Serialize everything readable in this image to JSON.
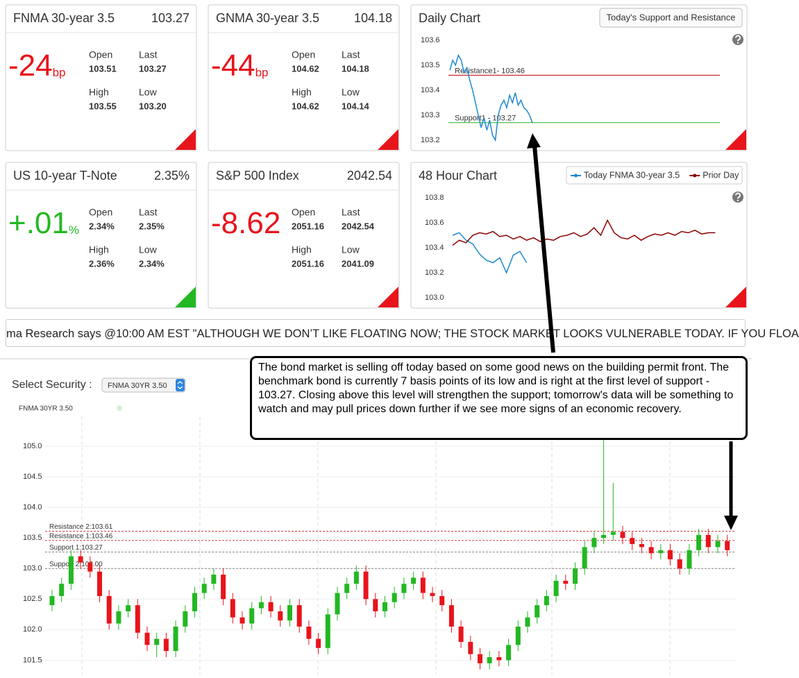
{
  "cards": [
    {
      "title": "FNMA 30-year 3.5",
      "price": "103.27",
      "change": "-24",
      "unit": "bp",
      "color": "#e8141b",
      "fields": [
        {
          "label": "Open",
          "value": "103.51"
        },
        {
          "label": "Last",
          "value": "103.27"
        },
        {
          "label": "High",
          "value": "103.55"
        },
        {
          "label": "Low",
          "value": "103.20"
        }
      ]
    },
    {
      "title": "GNMA 30-year 3.5",
      "price": "104.18",
      "change": "-44",
      "unit": "bp",
      "color": "#e8141b",
      "fields": [
        {
          "label": "Open",
          "value": "104.62"
        },
        {
          "label": "Last",
          "value": "104.18"
        },
        {
          "label": "High",
          "value": "104.62"
        },
        {
          "label": "Low",
          "value": "104.14"
        }
      ]
    },
    {
      "title": "US 10-year T-Note",
      "price": "2.35%",
      "change": "+.01",
      "unit": "%",
      "color": "#22b822",
      "fields": [
        {
          "label": "Open",
          "value": "2.34%"
        },
        {
          "label": "Last",
          "value": "2.35%"
        },
        {
          "label": "High",
          "value": "2.36%"
        },
        {
          "label": "Low",
          "value": "2.34%"
        }
      ]
    },
    {
      "title": "S&P 500 Index",
      "price": "2042.54",
      "change": "-8.62",
      "color": "#e8141b",
      "fields": [
        {
          "label": "Open",
          "value": "2051.16"
        },
        {
          "label": "Last",
          "value": "2042.54"
        },
        {
          "label": "High",
          "value": "2051.16"
        },
        {
          "label": "Low",
          "value": "2041.09"
        }
      ]
    }
  ],
  "ticker": "ma Research says @10:00 AM EST \"ALTHOUGH WE DON’T LIKE FLOATING NOW; THE STOCK MARKET LOOKS VULNERABLE TODAY. IF YOU FLOA",
  "annotation": "The bond market is selling off today based on some good news on the building permit front.  The benchmark bond is currently 7 basis points of its low and is right at the first level of support - 103.27.  Closing above this level will strengthen the support; tomorrow's data will be something to watch and may pull prices down further if we see more signs of an economic recovery.",
  "select_security": {
    "label": "Select Security :",
    "selected": "FNMA 30YR 3.50"
  },
  "chart_data": [
    {
      "type": "line",
      "title": "Daily Chart",
      "button": "Today's Support and Resistance",
      "color": "#1e88d0",
      "values": [
        103.48,
        103.52,
        103.5,
        103.54,
        103.52,
        103.47,
        103.49,
        103.44,
        103.4,
        103.35,
        103.3,
        103.25,
        103.29,
        103.24,
        103.28,
        103.22,
        103.2,
        103.3,
        103.34,
        103.36,
        103.33,
        103.38,
        103.35,
        103.39,
        103.34,
        103.36,
        103.33,
        103.32,
        103.3,
        103.27
      ],
      "ylim": [
        103.15,
        103.65
      ],
      "yticks": [
        103.2,
        103.3,
        103.4,
        103.5,
        103.6
      ],
      "levels": [
        {
          "label": "Resistance1- 103.46",
          "value": 103.46,
          "color": "#c00000"
        },
        {
          "label": "Support1 - 103.27",
          "value": 103.27,
          "color": "#22b822"
        }
      ]
    },
    {
      "type": "line",
      "title": "48 Hour Chart",
      "legend": "top-right",
      "series": [
        {
          "name": "Today FNMA 30-year 3.5",
          "color": "#1e88d0",
          "values": [
            103.5,
            103.52,
            103.46,
            103.43,
            103.35,
            103.3,
            103.28,
            103.32,
            103.2,
            103.34,
            103.37,
            103.28
          ]
        },
        {
          "name": "Prior Day",
          "color": "#8b0000",
          "values": [
            103.42,
            103.46,
            103.44,
            103.5,
            103.52,
            103.51,
            103.53,
            103.49,
            103.5,
            103.47,
            103.49,
            103.46,
            103.48,
            103.45,
            103.47,
            103.46,
            103.49,
            103.5,
            103.52,
            103.49,
            103.51,
            103.56,
            103.5,
            103.62,
            103.52,
            103.48,
            103.47,
            103.5,
            103.46,
            103.49,
            103.51,
            103.5,
            103.52,
            103.5,
            103.53,
            103.52,
            103.54,
            103.51,
            103.52,
            103.52
          ]
        }
      ],
      "ylim": [
        102.95,
        103.9
      ],
      "yticks": [
        {
          "value": 103,
          "label": "103.0"
        },
        103.2,
        103.4,
        103.6,
        103.8
      ]
    },
    {
      "type": "candlestick",
      "title": "FNMA 30YR 3.50",
      "up_color": "#22b822",
      "down_color": "#e8141b",
      "grid": true,
      "open": [
        102.4,
        102.55,
        102.75,
        103.2,
        103.1,
        102.95,
        102.55,
        102.1,
        102.3,
        102.4,
        101.95,
        101.75,
        101.85,
        101.65,
        102.05,
        102.3,
        102.6,
        102.75,
        102.9,
        102.5,
        102.2,
        102.1,
        102.35,
        102.45,
        102.3,
        102.15,
        102.4,
        102.05,
        101.85,
        101.7,
        102.25,
        102.6,
        102.75,
        102.95,
        102.5,
        102.3,
        102.45,
        102.6,
        102.75,
        102.85,
        102.6,
        102.55,
        102.4,
        102.05,
        101.8,
        101.6,
        101.45,
        101.55,
        101.5,
        101.75,
        102.05,
        102.2,
        102.4,
        102.55,
        102.8,
        102.75,
        103.0,
        103.35,
        103.5,
        103.55,
        103.6,
        103.5,
        103.4,
        103.35,
        103.25,
        103.3,
        103.15,
        103.0,
        103.3,
        103.55,
        103.35,
        103.45
      ],
      "high": [
        102.65,
        102.85,
        103.3,
        103.3,
        103.2,
        103.05,
        102.65,
        102.4,
        102.5,
        102.5,
        102.05,
        101.95,
        101.95,
        102.15,
        102.4,
        102.7,
        102.85,
        103.0,
        103.0,
        102.6,
        102.3,
        102.45,
        102.55,
        102.55,
        102.4,
        102.5,
        102.5,
        102.15,
        101.95,
        102.35,
        102.7,
        102.85,
        103.05,
        103.05,
        102.6,
        102.55,
        102.7,
        102.85,
        102.95,
        102.95,
        102.7,
        102.65,
        102.5,
        102.15,
        101.9,
        101.7,
        101.65,
        101.65,
        101.85,
        102.15,
        102.3,
        102.5,
        102.65,
        102.9,
        102.9,
        103.1,
        103.45,
        103.6,
        105.1,
        104.4,
        103.7,
        103.6,
        103.5,
        103.45,
        103.4,
        103.4,
        103.25,
        103.4,
        103.65,
        103.65,
        103.55,
        103.55
      ],
      "low": [
        102.3,
        102.45,
        102.65,
        103.0,
        102.85,
        102.45,
        102.0,
        102.0,
        102.2,
        101.85,
        101.65,
        101.55,
        101.55,
        101.55,
        101.95,
        102.2,
        102.5,
        102.65,
        102.4,
        102.1,
        102.0,
        102.0,
        102.25,
        102.2,
        102.05,
        102.05,
        101.95,
        101.75,
        101.6,
        101.6,
        102.15,
        102.5,
        102.65,
        102.4,
        102.2,
        102.2,
        102.35,
        102.5,
        102.65,
        102.5,
        102.45,
        102.3,
        101.95,
        101.7,
        101.5,
        101.35,
        101.35,
        101.4,
        101.4,
        101.65,
        101.95,
        102.1,
        102.3,
        102.45,
        102.65,
        102.65,
        102.9,
        103.25,
        103.4,
        103.45,
        103.4,
        103.3,
        103.25,
        103.15,
        103.15,
        103.05,
        102.9,
        102.9,
        103.2,
        103.25,
        103.25,
        103.2
      ],
      "close": [
        102.55,
        102.75,
        103.2,
        103.1,
        102.95,
        102.55,
        102.1,
        102.3,
        102.4,
        101.95,
        101.75,
        101.85,
        101.65,
        102.05,
        102.3,
        102.6,
        102.75,
        102.9,
        102.5,
        102.2,
        102.1,
        102.35,
        102.45,
        102.3,
        102.15,
        102.4,
        102.05,
        101.85,
        101.7,
        102.25,
        102.6,
        102.75,
        102.95,
        102.5,
        102.3,
        102.45,
        102.6,
        102.75,
        102.85,
        102.6,
        102.55,
        102.4,
        102.05,
        101.8,
        101.6,
        101.45,
        101.55,
        101.5,
        101.75,
        102.05,
        102.2,
        102.4,
        102.55,
        102.8,
        102.75,
        103.0,
        103.35,
        103.5,
        103.55,
        103.6,
        103.5,
        103.4,
        103.35,
        103.25,
        103.3,
        103.15,
        103.0,
        103.3,
        103.55,
        103.35,
        103.45,
        103.3
      ],
      "ylim": [
        101.3,
        105.5
      ],
      "yticks": [
        101.5,
        {
          "value": 102,
          "label": "102.0"
        },
        102.5,
        {
          "value": 103,
          "label": "103.0"
        },
        103.5,
        {
          "value": 104,
          "label": "104.0"
        },
        104.5,
        {
          "value": 105,
          "label": "105.0"
        }
      ],
      "levels": [
        {
          "label": "Resistance 2:103.61",
          "value": 103.61,
          "color": "#d04040"
        },
        {
          "label": "Resistance 1:103.46",
          "value": 103.46,
          "color": "#d04040"
        },
        {
          "label": "Support 1:103.27",
          "value": 103.27,
          "color": "#888888"
        },
        {
          "label": "Support 2:103.00",
          "value": 103.0,
          "color": "#888888"
        }
      ]
    }
  ]
}
